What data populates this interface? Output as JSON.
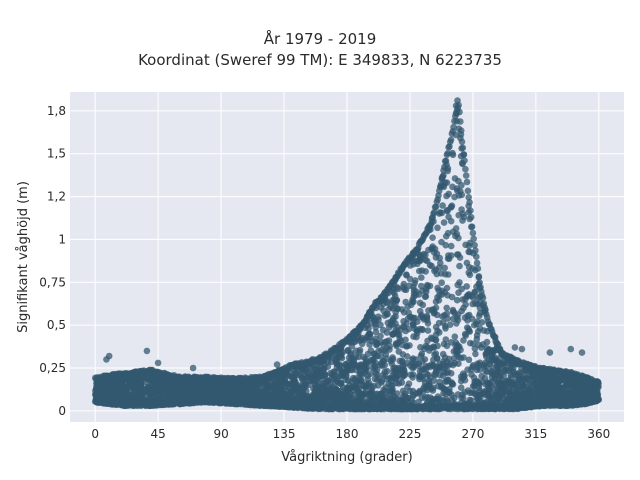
{
  "chart_data": {
    "type": "scatter",
    "title": "År 1979 - 2019",
    "subtitle": "Koordinat (Sweref 99 TM): E 349833, N 6223735",
    "xlabel": "Vågriktning (grader)",
    "ylabel": "Signifikant våghöjd (m)",
    "xlim": [
      -18,
      378
    ],
    "ylim": [
      -0.065,
      1.86
    ],
    "x_ticks": [
      0,
      45,
      90,
      135,
      180,
      225,
      270,
      315,
      360
    ],
    "x_tick_labels": [
      "0",
      "45",
      "90",
      "135",
      "180",
      "225",
      "270",
      "315",
      "360"
    ],
    "y_ticks": [
      0,
      0.25,
      0.5,
      0.75,
      1,
      1.25,
      1.5,
      1.75
    ],
    "y_tick_labels": [
      "0",
      "0,25",
      "0,5",
      "0,75",
      "1",
      "1,2",
      "1,5",
      "1,8"
    ],
    "grid": true,
    "marker_color": "#335870",
    "background_color": "#e5e8f0",
    "envelope": {
      "description_x": [
        0,
        20,
        40,
        60,
        80,
        100,
        120,
        140,
        160,
        170,
        180,
        190,
        200,
        210,
        220,
        230,
        240,
        245,
        250,
        255,
        258,
        260,
        262,
        265,
        270,
        275,
        280,
        290,
        300,
        310,
        320,
        330,
        340,
        350,
        360
      ],
      "max_y": [
        0.2,
        0.22,
        0.24,
        0.2,
        0.2,
        0.19,
        0.2,
        0.27,
        0.31,
        0.36,
        0.42,
        0.5,
        0.63,
        0.72,
        0.85,
        0.95,
        1.1,
        1.25,
        1.45,
        1.62,
        1.75,
        1.8,
        1.6,
        1.4,
        1.05,
        0.75,
        0.55,
        0.35,
        0.3,
        0.27,
        0.25,
        0.24,
        0.23,
        0.2,
        0.17
      ],
      "min_y": [
        0.05,
        0.03,
        0.03,
        0.04,
        0.05,
        0.04,
        0.03,
        0.02,
        0.01,
        0.01,
        0.01,
        0.01,
        0.01,
        0.01,
        0.01,
        0.01,
        0.01,
        0.01,
        0.01,
        0.01,
        0.01,
        0.01,
        0.01,
        0.01,
        0.01,
        0.01,
        0.01,
        0.01,
        0.01,
        0.02,
        0.03,
        0.03,
        0.03,
        0.04,
        0.06
      ]
    },
    "outliers": [
      {
        "x": 10,
        "y": 0.32
      },
      {
        "x": 8,
        "y": 0.3
      },
      {
        "x": 37,
        "y": 0.35
      },
      {
        "x": 45,
        "y": 0.28
      },
      {
        "x": 70,
        "y": 0.25
      },
      {
        "x": 130,
        "y": 0.27
      },
      {
        "x": 300,
        "y": 0.37
      },
      {
        "x": 305,
        "y": 0.36
      },
      {
        "x": 325,
        "y": 0.34
      },
      {
        "x": 340,
        "y": 0.36
      },
      {
        "x": 348,
        "y": 0.34
      },
      {
        "x": 248,
        "y": 1.35
      },
      {
        "x": 252,
        "y": 1.4
      },
      {
        "x": 258,
        "y": 1.78
      },
      {
        "x": 259,
        "y": 1.81
      }
    ]
  }
}
